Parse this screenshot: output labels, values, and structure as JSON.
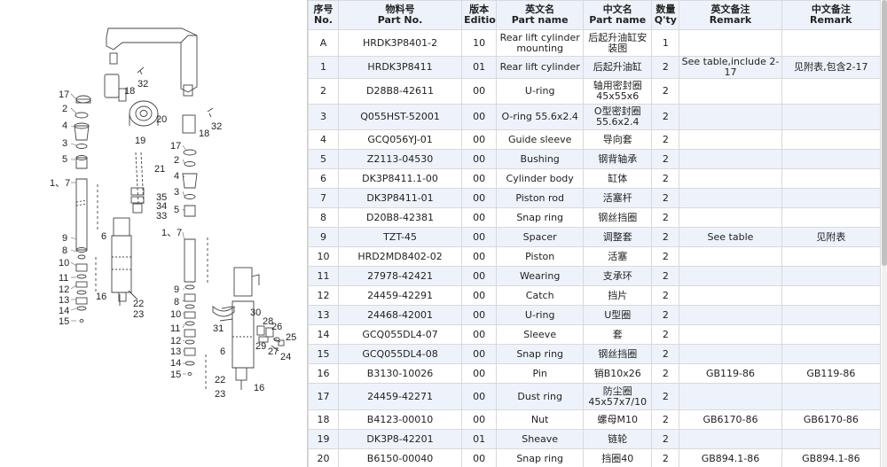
{
  "diagram": {
    "callouts": [
      "17",
      "2",
      "4",
      "3",
      "5",
      "1、7",
      "9",
      "8",
      "10",
      "11",
      "12",
      "13",
      "14",
      "15",
      "6",
      "16",
      "22",
      "23",
      "18",
      "32",
      "20",
      "19",
      "21",
      "35",
      "34",
      "33",
      "17",
      "2",
      "4",
      "3",
      "5",
      "18",
      "32",
      "1、7",
      "9",
      "8",
      "10",
      "11",
      "12",
      "13",
      "14",
      "15",
      "6",
      "31",
      "30",
      "28",
      "26",
      "29",
      "27",
      "25",
      "24",
      "22",
      "23",
      "16"
    ]
  },
  "table": {
    "headers": [
      {
        "cn": "序号",
        "en": "No."
      },
      {
        "cn": "物料号",
        "en": "Part No."
      },
      {
        "cn": "版本",
        "en": "Edition"
      },
      {
        "cn": "英文名",
        "en": "Part name"
      },
      {
        "cn": "中文名",
        "en": "Part name"
      },
      {
        "cn": "数量",
        "en": "Q'ty"
      },
      {
        "cn": "英文备注",
        "en": "Remark"
      },
      {
        "cn": "中文备注",
        "en": "Remark"
      }
    ],
    "rows": [
      {
        "no": "A",
        "part": "HRDK3P8401-2",
        "ed": "10",
        "en": "Rear lift cylinder mounting",
        "cn": "后起升油缸安装图",
        "qty": "1",
        "ren": "",
        "rcn": ""
      },
      {
        "no": "1",
        "part": "HRDK3P8411",
        "ed": "01",
        "en": "Rear lift cylinder",
        "cn": "后起升油缸",
        "qty": "2",
        "ren": "See table,include 2-17",
        "rcn": "见附表,包含2-17"
      },
      {
        "no": "2",
        "part": "D28B8-42611",
        "ed": "00",
        "en": "U-ring",
        "cn": "轴用密封圈45x55x6",
        "qty": "2",
        "ren": "",
        "rcn": ""
      },
      {
        "no": "3",
        "part": "Q055HST-52001",
        "ed": "00",
        "en": "O-ring 55.6x2.4",
        "cn": "O型密封圈55.6x2.4",
        "qty": "2",
        "ren": "",
        "rcn": ""
      },
      {
        "no": "4",
        "part": "GCQ056YJ-01",
        "ed": "00",
        "en": "Guide sleeve",
        "cn": "导向套",
        "qty": "2",
        "ren": "",
        "rcn": ""
      },
      {
        "no": "5",
        "part": "Z2113-04530",
        "ed": "00",
        "en": "Bushing",
        "cn": "钢背轴承",
        "qty": "2",
        "ren": "",
        "rcn": ""
      },
      {
        "no": "6",
        "part": "DK3P8411.1-00",
        "ed": "00",
        "en": "Cylinder body",
        "cn": "缸体",
        "qty": "2",
        "ren": "",
        "rcn": ""
      },
      {
        "no": "7",
        "part": "DK3P8411-01",
        "ed": "00",
        "en": "Piston rod",
        "cn": "活塞杆",
        "qty": "2",
        "ren": "",
        "rcn": ""
      },
      {
        "no": "8",
        "part": "D20B8-42381",
        "ed": "00",
        "en": "Snap ring",
        "cn": "钢丝挡圈",
        "qty": "2",
        "ren": "",
        "rcn": ""
      },
      {
        "no": "9",
        "part": "TZT-45",
        "ed": "00",
        "en": "Spacer",
        "cn": "调整套",
        "qty": "2",
        "ren": "See table",
        "rcn": "见附表"
      },
      {
        "no": "10",
        "part": "HRD2MD8402-02",
        "ed": "00",
        "en": "Piston",
        "cn": "活塞",
        "qty": "2",
        "ren": "",
        "rcn": ""
      },
      {
        "no": "11",
        "part": "27978-42421",
        "ed": "00",
        "en": "Wearing",
        "cn": "支承环",
        "qty": "2",
        "ren": "",
        "rcn": ""
      },
      {
        "no": "12",
        "part": "24459-42291",
        "ed": "00",
        "en": "Catch",
        "cn": "挡片",
        "qty": "2",
        "ren": "",
        "rcn": ""
      },
      {
        "no": "13",
        "part": "24468-42001",
        "ed": "00",
        "en": "U-ring",
        "cn": "U型圈",
        "qty": "2",
        "ren": "",
        "rcn": ""
      },
      {
        "no": "14",
        "part": "GCQ055DL4-07",
        "ed": "00",
        "en": "Sleeve",
        "cn": "套",
        "qty": "2",
        "ren": "",
        "rcn": ""
      },
      {
        "no": "15",
        "part": "GCQ055DL4-08",
        "ed": "00",
        "en": "Snap ring",
        "cn": "钢丝挡圈",
        "qty": "2",
        "ren": "",
        "rcn": ""
      },
      {
        "no": "16",
        "part": "B3130-10026",
        "ed": "00",
        "en": "Pin",
        "cn": "销B10x26",
        "qty": "2",
        "ren": "GB119-86",
        "rcn": "GB119-86"
      },
      {
        "no": "17",
        "part": "24459-42271",
        "ed": "00",
        "en": "Dust ring",
        "cn": "防尘圈45x57x7/10",
        "qty": "2",
        "ren": "",
        "rcn": ""
      },
      {
        "no": "18",
        "part": "B4123-00010",
        "ed": "00",
        "en": "Nut",
        "cn": "螺母M10",
        "qty": "2",
        "ren": "GB6170-86",
        "rcn": "GB6170-86"
      },
      {
        "no": "19",
        "part": "DK3P8-42201",
        "ed": "01",
        "en": "Sheave",
        "cn": "链轮",
        "qty": "2",
        "ren": "",
        "rcn": ""
      },
      {
        "no": "20",
        "part": "B6150-00040",
        "ed": "00",
        "en": "Snap ring",
        "cn": "挡圈40",
        "qty": "2",
        "ren": "GB894.1-86",
        "rcn": "GB894.1-86"
      }
    ]
  }
}
